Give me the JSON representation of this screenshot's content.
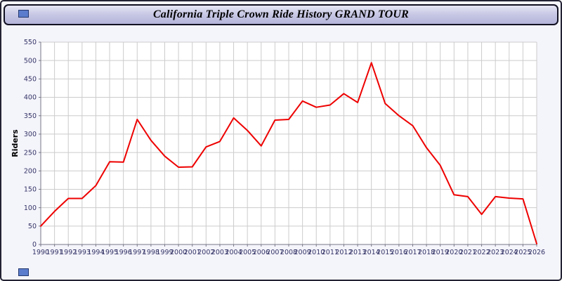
{
  "window": {
    "title": "California Triple Crown Ride History GRAND TOUR"
  },
  "chart_data": {
    "type": "line",
    "title": "California Triple Crown Ride History GRAND TOUR",
    "xlabel": "",
    "ylabel": "Riders",
    "ylim": [
      0,
      550
    ],
    "ytick_step": 50,
    "grid": true,
    "legend_position": "none",
    "line_color": "#ee0000",
    "grid_color": "#cccccc",
    "tick_color": "#333366",
    "axis_color": "#777788",
    "x": [
      1990,
      1991,
      1992,
      1993,
      1994,
      1995,
      1996,
      1997,
      1998,
      1999,
      2000,
      2001,
      2002,
      2003,
      2004,
      2005,
      2006,
      2007,
      2008,
      2009,
      2010,
      2011,
      2012,
      2013,
      2014,
      2015,
      2016,
      2017,
      2018,
      2019,
      2020,
      2021,
      2022,
      2023,
      2024,
      2025,
      2026
    ],
    "series": [
      {
        "name": "Riders",
        "values": [
          50,
          90,
          125,
          125,
          160,
          225,
          224,
          340,
          283,
          240,
          210,
          211,
          265,
          280,
          344,
          310,
          268,
          338,
          340,
          390,
          373,
          379,
          410,
          386,
          494,
          383,
          350,
          323,
          263,
          215,
          135,
          130,
          82,
          130,
          126,
          124,
          2
        ]
      }
    ]
  }
}
